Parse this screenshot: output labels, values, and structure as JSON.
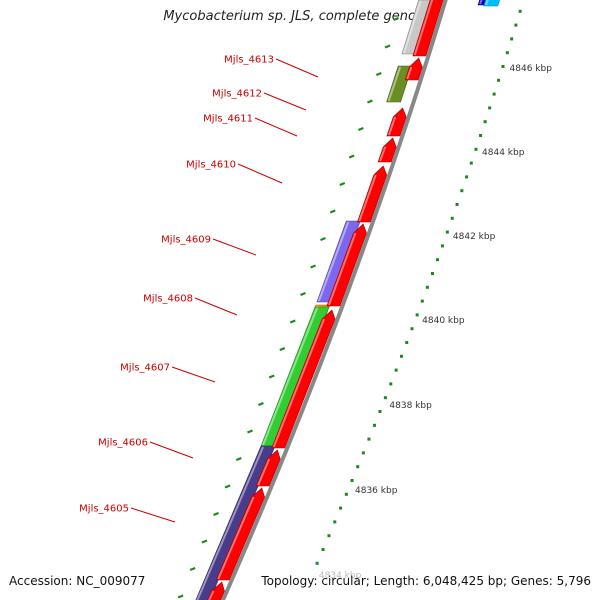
{
  "title": "Mycobacterium sp. JLS, complete genome",
  "footer": {
    "accession": "Accession: NC_009077",
    "info": "Topology: circular; Length: 6,048,425 bp; Genes: 5,796"
  },
  "colors": {
    "forward_gene": "#ff0000",
    "backbone": "#888888",
    "label": "#cc0000",
    "tick": "#1a8a1a",
    "kbp_label": "#333333",
    "purple": "#7b68ee",
    "dark_purple": "#483d8b",
    "green": "#32cd32",
    "olive": "#6b8e23",
    "orange": "#ff8c00",
    "light_gray": "#c8c8c8",
    "blue": "#0000cd",
    "light_blue": "#00bfff"
  },
  "gene_labels": [
    "Mjls_4613",
    "Mjls_4612",
    "Mjls_4611",
    "Mjls_4610",
    "Mjls_4609",
    "Mjls_4608",
    "Mjls_4607",
    "Mjls_4606",
    "Mjls_4605"
  ],
  "kbp_labels": [
    "4846 kbp",
    "4844 kbp",
    "4842 kbp",
    "4840 kbp",
    "4838 kbp",
    "4836 kbp",
    "4834 kbp"
  ]
}
